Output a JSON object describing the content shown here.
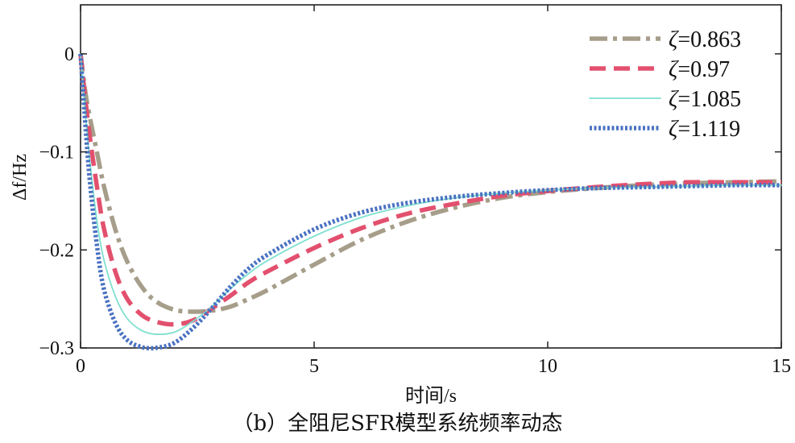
{
  "chart_data": {
    "type": "line",
    "title": "",
    "xlabel": "时间/s",
    "ylabel": "Δf/Hz",
    "xlim": [
      0,
      15
    ],
    "ylim": [
      -0.3,
      0.05
    ],
    "xticks": [
      0,
      5,
      10,
      15
    ],
    "xtick_labels": [
      "0",
      "5",
      "10",
      "15"
    ],
    "yticks": [
      0,
      -0.1,
      -0.2,
      -0.3
    ],
    "ytick_labels": [
      "0",
      "−0.1",
      "−0.2",
      "−0.3"
    ],
    "grid": false,
    "legend_position": "top-right",
    "series": [
      {
        "name": "ζ=0.863",
        "symbol": "ζ",
        "value_text": "=0.863",
        "color": "#a69e8a",
        "style": "dashdot",
        "x": [
          0,
          0.1,
          0.2,
          0.35,
          0.5,
          0.75,
          1.0,
          1.3,
          1.6,
          2.0,
          2.4,
          2.8,
          3.2,
          3.6,
          4.0,
          5.0,
          6.0,
          7.0,
          8.0,
          9.0,
          10.0,
          11.0,
          12.0,
          13.0,
          14.0,
          15.0
        ],
        "y": [
          0,
          -0.038,
          -0.065,
          -0.1,
          -0.135,
          -0.18,
          -0.212,
          -0.237,
          -0.252,
          -0.261,
          -0.263,
          -0.262,
          -0.258,
          -0.25,
          -0.241,
          -0.215,
          -0.19,
          -0.171,
          -0.157,
          -0.147,
          -0.141,
          -0.137,
          -0.134,
          -0.132,
          -0.131,
          -0.13
        ]
      },
      {
        "name": "ζ=0.97",
        "symbol": "ζ",
        "value_text": "=0.97",
        "color": "#e2506e",
        "style": "dashed",
        "x": [
          0,
          0.1,
          0.2,
          0.35,
          0.5,
          0.75,
          1.0,
          1.3,
          1.6,
          2.0,
          2.4,
          2.8,
          3.2,
          3.6,
          4.0,
          5.0,
          6.0,
          7.0,
          8.0,
          9.0,
          10.0,
          11.0,
          12.0,
          13.0,
          14.0,
          15.0
        ],
        "y": [
          0,
          -0.045,
          -0.085,
          -0.135,
          -0.178,
          -0.223,
          -0.25,
          -0.266,
          -0.273,
          -0.276,
          -0.272,
          -0.26,
          -0.247,
          -0.233,
          -0.222,
          -0.198,
          -0.178,
          -0.163,
          -0.153,
          -0.145,
          -0.14,
          -0.136,
          -0.133,
          -0.131,
          -0.131,
          -0.131
        ]
      },
      {
        "name": "ζ=1.085",
        "symbol": "ζ",
        "value_text": "=1.085",
        "color": "#7fe0d0",
        "style": "solid",
        "x": [
          0,
          0.1,
          0.2,
          0.35,
          0.5,
          0.75,
          1.0,
          1.3,
          1.6,
          2.0,
          2.4,
          2.8,
          3.2,
          3.6,
          4.0,
          5.0,
          6.0,
          7.0,
          8.0,
          9.0,
          10.0,
          11.0,
          12.0,
          13.0,
          14.0,
          15.0
        ],
        "y": [
          0,
          -0.06,
          -0.11,
          -0.17,
          -0.21,
          -0.248,
          -0.27,
          -0.282,
          -0.286,
          -0.284,
          -0.273,
          -0.258,
          -0.24,
          -0.224,
          -0.211,
          -0.186,
          -0.167,
          -0.155,
          -0.147,
          -0.142,
          -0.139,
          -0.137,
          -0.136,
          -0.135,
          -0.134,
          -0.134
        ]
      },
      {
        "name": "ζ=1.119",
        "symbol": "ζ",
        "value_text": "=1.119",
        "color": "#4a72c2",
        "style": "dotted",
        "x": [
          0,
          0.1,
          0.2,
          0.35,
          0.5,
          0.75,
          1.0,
          1.3,
          1.6,
          2.0,
          2.4,
          2.8,
          3.2,
          3.6,
          4.0,
          5.0,
          6.0,
          7.0,
          8.0,
          9.0,
          10.0,
          11.0,
          12.0,
          13.0,
          14.0,
          15.0
        ],
        "y": [
          0,
          -0.07,
          -0.13,
          -0.195,
          -0.24,
          -0.275,
          -0.292,
          -0.299,
          -0.3,
          -0.295,
          -0.28,
          -0.26,
          -0.238,
          -0.219,
          -0.205,
          -0.179,
          -0.162,
          -0.152,
          -0.146,
          -0.142,
          -0.139,
          -0.137,
          -0.136,
          -0.135,
          -0.134,
          -0.134
        ]
      }
    ]
  },
  "caption": "（b）全阻尼SFR模型系统频率动态"
}
